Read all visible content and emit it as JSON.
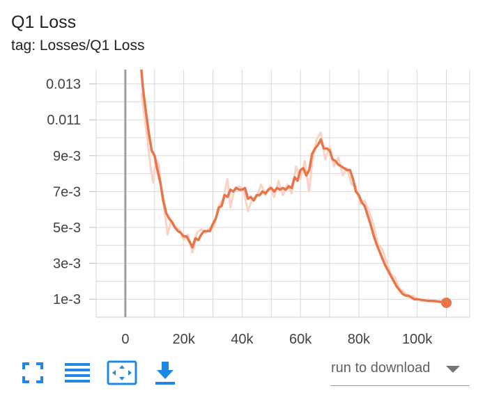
{
  "card": {
    "title": "Q1 Loss",
    "subtitle": "tag: Losses/Q1 Loss"
  },
  "colors": {
    "line": "#e8744a",
    "line_raw": "#f9d3c4",
    "grid": "#d8d8d8",
    "zero_axis": "#9e9e9e",
    "icon": "#1e88e5"
  },
  "chart_data": {
    "type": "line",
    "xlim": [
      -10000,
      118000
    ],
    "ylim": [
      0,
      0.0138
    ],
    "grid": true,
    "x_ticks": [
      0,
      20000,
      40000,
      60000,
      80000,
      100000
    ],
    "x_tick_labels": [
      "0",
      "20k",
      "40k",
      "60k",
      "80k",
      "100k"
    ],
    "y_ticks": [
      0.001,
      0.003,
      0.005,
      0.007,
      0.009,
      0.011,
      0.013
    ],
    "y_tick_labels": [
      "1e-3",
      "3e-3",
      "5e-3",
      "7e-3",
      "9e-3",
      "0.011",
      "0.013"
    ],
    "series": [
      {
        "x": [
          5500,
          6000,
          7000,
          8000,
          9000,
          10000,
          11000,
          12000,
          13000,
          14000,
          15000,
          16000,
          17000,
          18000,
          19000,
          20000,
          21000,
          22000,
          23000,
          24000,
          25000,
          26000,
          27000,
          28000,
          29000,
          30000,
          31000,
          32000,
          33000,
          34000,
          35000,
          36000,
          37000,
          38000,
          39000,
          40000,
          41000,
          42000,
          43000,
          44000,
          45000,
          46000,
          47000,
          48000,
          49000,
          50000,
          51000,
          52000,
          53000,
          54000,
          55000,
          56000,
          57000,
          58000,
          59000,
          60000,
          61000,
          62000,
          63000,
          64000,
          65000,
          66000,
          67000,
          68000,
          69000,
          70000,
          71000,
          72000,
          73000,
          74000,
          75000,
          76000,
          77000,
          78000,
          79000,
          80000,
          81000,
          82000,
          83000,
          84000,
          85000,
          86000,
          87000,
          88000,
          89000,
          90000,
          91000,
          92000,
          93000,
          94000,
          95000,
          96000,
          97000,
          98000,
          99000,
          100000,
          102000,
          104000,
          106000,
          108000,
          110000
        ],
        "y": [
          0.0138,
          0.0128,
          0.0115,
          0.0103,
          0.0093,
          0.009,
          0.0082,
          0.0075,
          0.0065,
          0.0058,
          0.0055,
          0.0053,
          0.005,
          0.0048,
          0.0047,
          0.0045,
          0.0045,
          0.0042,
          0.0039,
          0.0044,
          0.0043,
          0.0046,
          0.0048,
          0.0048,
          0.0048,
          0.0052,
          0.0055,
          0.0061,
          0.0062,
          0.0068,
          0.0067,
          0.0071,
          0.007,
          0.0072,
          0.0071,
          0.0071,
          0.0072,
          0.0066,
          0.0067,
          0.0065,
          0.0068,
          0.0068,
          0.007,
          0.0069,
          0.0071,
          0.0072,
          0.007,
          0.0072,
          0.0071,
          0.0072,
          0.0071,
          0.0073,
          0.0072,
          0.0078,
          0.0076,
          0.0082,
          0.0083,
          0.0079,
          0.0082,
          0.0091,
          0.0094,
          0.0096,
          0.0099,
          0.0094,
          0.0094,
          0.0093,
          0.0088,
          0.0087,
          0.0085,
          0.0084,
          0.0083,
          0.0082,
          0.0082,
          0.0077,
          0.007,
          0.0068,
          0.0064,
          0.0062,
          0.0057,
          0.0052,
          0.0046,
          0.0041,
          0.0037,
          0.0033,
          0.0029,
          0.0026,
          0.0023,
          0.002,
          0.0017,
          0.0015,
          0.0013,
          0.0012,
          0.0012,
          0.0011,
          0.001,
          0.001,
          0.00095,
          0.0009,
          0.0009,
          0.00085,
          0.0008
        ]
      }
    ],
    "raw_series": {
      "x": [
        5500,
        6500,
        7500,
        8500,
        9500,
        10500,
        11500,
        12500,
        13500,
        14500,
        15500,
        17000,
        18500,
        20000,
        21500,
        23000,
        24500,
        26000,
        27500,
        29000,
        30500,
        32000,
        33500,
        35000,
        36000,
        37500,
        39000,
        40500,
        42000,
        43500,
        45000,
        46500,
        48000,
        49500,
        51000,
        52500,
        54000,
        55500,
        57000,
        58500,
        60000,
        61500,
        63000,
        64000,
        65500,
        67000,
        68500,
        70000,
        71500,
        73000,
        74500,
        76000,
        77500,
        79000,
        80500,
        82000,
        83500,
        85000,
        86500,
        88000,
        89500,
        91000,
        92500,
        94000,
        95500,
        97000,
        98500,
        100000,
        102000,
        104000,
        106000,
        108000,
        110000
      ],
      "y": [
        0.0125,
        0.0112,
        0.01,
        0.0085,
        0.0075,
        0.0088,
        0.0085,
        0.0068,
        0.0058,
        0.0046,
        0.0053,
        0.005,
        0.0049,
        0.0043,
        0.0046,
        0.0036,
        0.0047,
        0.0049,
        0.0047,
        0.005,
        0.0051,
        0.0062,
        0.0066,
        0.0077,
        0.0061,
        0.0072,
        0.0073,
        0.0071,
        0.0059,
        0.0066,
        0.0067,
        0.0074,
        0.0068,
        0.0073,
        0.0067,
        0.0076,
        0.0068,
        0.0074,
        0.0069,
        0.0084,
        0.0077,
        0.0087,
        0.007,
        0.0086,
        0.0099,
        0.0103,
        0.0088,
        0.0095,
        0.0084,
        0.0089,
        0.0079,
        0.0083,
        0.0074,
        0.0073,
        0.0063,
        0.0065,
        0.0059,
        0.0052,
        0.0041,
        0.0038,
        0.0031,
        0.0024,
        0.0022,
        0.0016,
        0.0014,
        0.0011,
        0.0012,
        0.001,
        0.0009,
        0.001,
        0.00085,
        0.0009,
        0.0008
      ]
    }
  },
  "toolbar": {
    "fullscreen_icon": "fullscreen-icon",
    "legend_icon": "list-icon",
    "fit_domain_icon": "fit-domain-icon",
    "download_icon": "download-icon",
    "run_select_placeholder": "run to download"
  }
}
